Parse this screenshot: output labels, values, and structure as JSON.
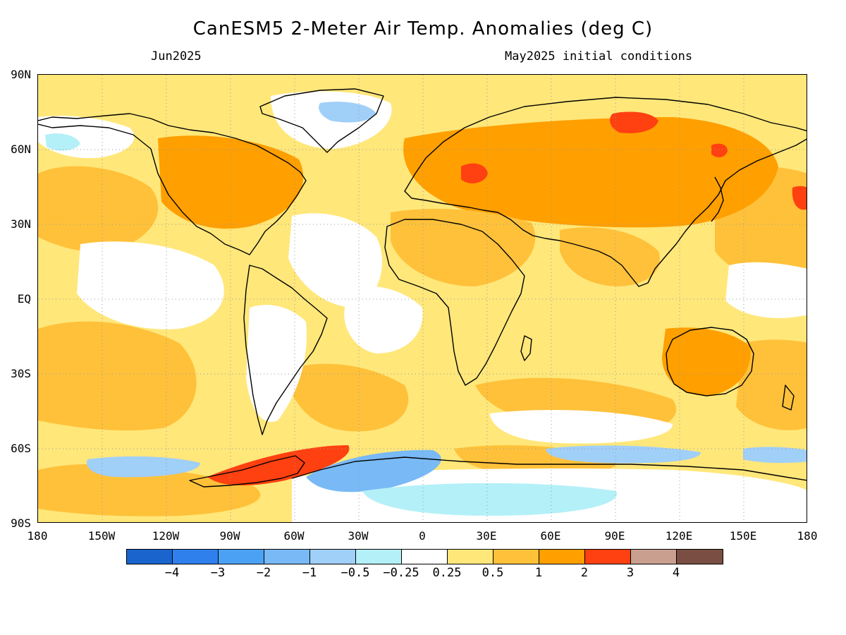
{
  "header": {
    "title": "CanESM5 2-Meter Air Temp. Anomalies (deg C)",
    "valid_month": "Jun2025",
    "init_conditions": "May2025 initial conditions"
  },
  "axes": {
    "lat_labels": [
      "90N",
      "60N",
      "30N",
      "EQ",
      "30S",
      "60S",
      "90S"
    ],
    "lon_labels": [
      "180",
      "150W",
      "120W",
      "90W",
      "60W",
      "30W",
      "0",
      "30E",
      "60E",
      "90E",
      "120E",
      "150E",
      "180"
    ]
  },
  "colorbar": {
    "colors": [
      "#1964cd",
      "#2f80ed",
      "#4ba2f4",
      "#78b9f6",
      "#a0cff8",
      "#b4f0f8",
      "#ffffff",
      "#ffe77a",
      "#ffc13a",
      "#ff9f00",
      "#ff4010",
      "#c9a090",
      "#7a4e42"
    ],
    "labels": [
      "−4",
      "−3",
      "−2",
      "−1",
      "−0.5",
      "−0.25",
      "0.25",
      "0.5",
      "1",
      "2",
      "3",
      "4"
    ]
  },
  "map_colors": {
    "ocean_base": "#ffe77a",
    "neutral": "#ffffff",
    "warm": "#ffc13a",
    "warmer": "#ff9f00",
    "hot": "#ff4010",
    "cool_light": "#b4f0f8",
    "cool": "#a0cff8",
    "cold": "#78b9f6",
    "coastline": "#000000",
    "grid": "#999999"
  }
}
